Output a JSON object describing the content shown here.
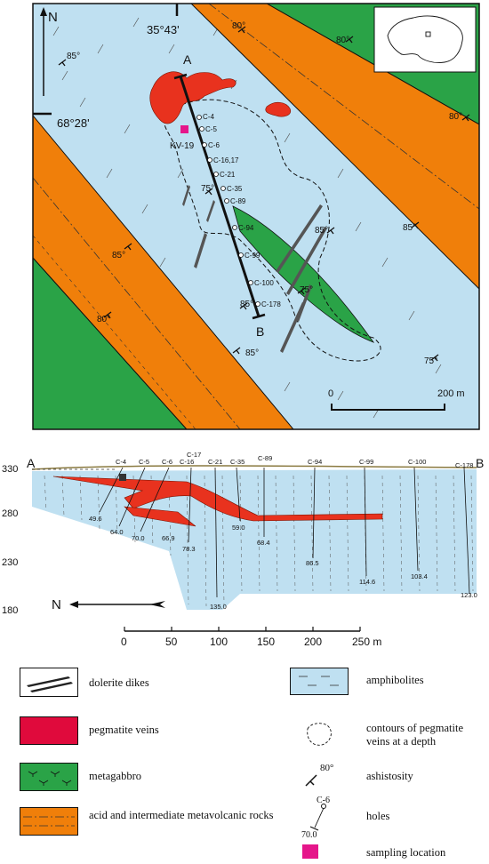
{
  "map": {
    "coord_top": "35°43'",
    "coord_left": "68°28'",
    "north": "N",
    "point_a": "A",
    "point_b": "B",
    "sample": "KV-19",
    "scale_zero": "0",
    "scale_max": "200 m",
    "dips": [
      "85°",
      "80°",
      "80°",
      "80°",
      "75°",
      "85°",
      "85°",
      "85°",
      "75°",
      "85°",
      "85°",
      "80°",
      "75°"
    ],
    "holes": [
      "C-4",
      "C-5",
      "C-6",
      "C-16,17",
      "C-21",
      "C-35",
      "C-89",
      "C-94",
      "C-99",
      "C-100",
      "C-178"
    ]
  },
  "section": {
    "left_end": "A",
    "right_end": "B",
    "y_ticks": [
      "330",
      "280",
      "230",
      "180"
    ],
    "holes": [
      "C-4",
      "C-5",
      "C-6",
      "C-16",
      "C-17",
      "C-21",
      "C-35",
      "C-89",
      "C-94",
      "C-99",
      "C-100",
      "C-178"
    ],
    "depths": [
      "49.6",
      "64.0",
      "70.0",
      "66.9",
      "78.3",
      "59.0",
      "68.4",
      "86.5",
      "114.6",
      "103.4",
      "123.0",
      "135.0"
    ],
    "north": "N",
    "scale_ticks": [
      "0",
      "50",
      "100",
      "150",
      "200",
      "250 m"
    ]
  },
  "legend": {
    "dolerite": "dolerite dikes",
    "pegmatite": "pegmatite veins",
    "metagabbro": "metagabbro",
    "acid": "acid and intermediate metavolcanic rocks",
    "amphibolites": "amphibolites",
    "contours": "contours of pegmatite veins at a depth",
    "schistosity": "ashistosity",
    "schistosity_value": "80°",
    "holes": "holes",
    "hole_name": "C-6",
    "hole_depth": "70.0",
    "sampling": "sampling location"
  },
  "colors": {
    "amphibolite": "#bfe0f1",
    "metagabbro": "#2aa347",
    "acid_volcanic": "#f07f0a",
    "pegmatite": "#e8321e",
    "pegmatite_legend": "#e00a3c",
    "sampling": "#e5168a"
  }
}
